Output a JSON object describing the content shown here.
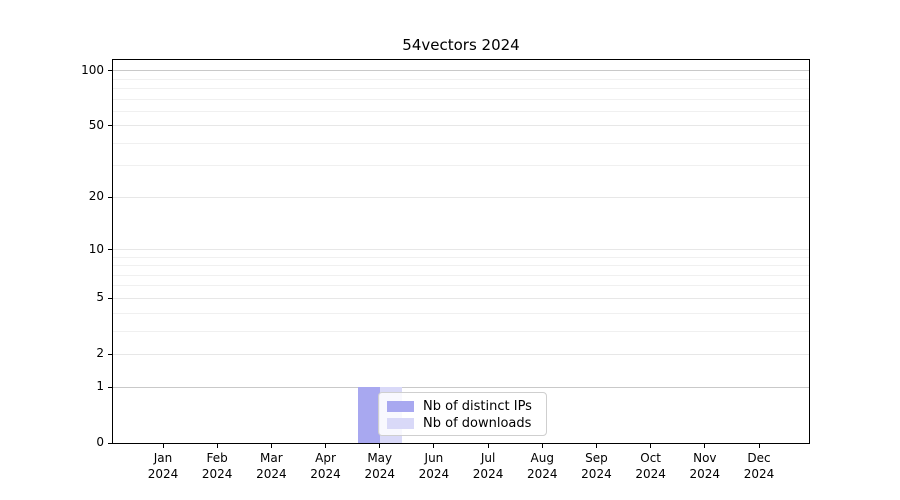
{
  "title": "54vectors 2024",
  "chart_data": {
    "type": "bar",
    "title": "54vectors 2024",
    "x_months": [
      "Jan",
      "Feb",
      "Mar",
      "Apr",
      "May",
      "Jun",
      "Jul",
      "Aug",
      "Sep",
      "Oct",
      "Nov",
      "Dec"
    ],
    "x_year": "2024",
    "series": [
      {
        "name": "Nb of distinct IPs",
        "color": "#a8a8f0",
        "values": [
          0,
          0,
          0,
          0,
          1,
          0,
          0,
          0,
          0,
          0,
          0,
          0
        ]
      },
      {
        "name": "Nb of downloads",
        "color": "#d9d9f8",
        "values": [
          0,
          0,
          0,
          0,
          1,
          0,
          0,
          0,
          0,
          0,
          0,
          0
        ]
      }
    ],
    "y_axis": {
      "scale": "log1p",
      "ylim": [
        0,
        114
      ],
      "tick_values": [
        100,
        50,
        20,
        10,
        5,
        2,
        1,
        0
      ],
      "tick_labels": [
        "100",
        "50",
        "20",
        "10",
        "5",
        "2",
        "1",
        "0"
      ],
      "gridline_values": [
        1,
        2,
        3,
        4,
        5,
        6,
        7,
        8,
        9,
        10,
        20,
        30,
        40,
        50,
        60,
        70,
        80,
        90,
        100
      ]
    },
    "legend": {
      "position": "inside-lower-left"
    },
    "grid": "horizontal-only"
  }
}
